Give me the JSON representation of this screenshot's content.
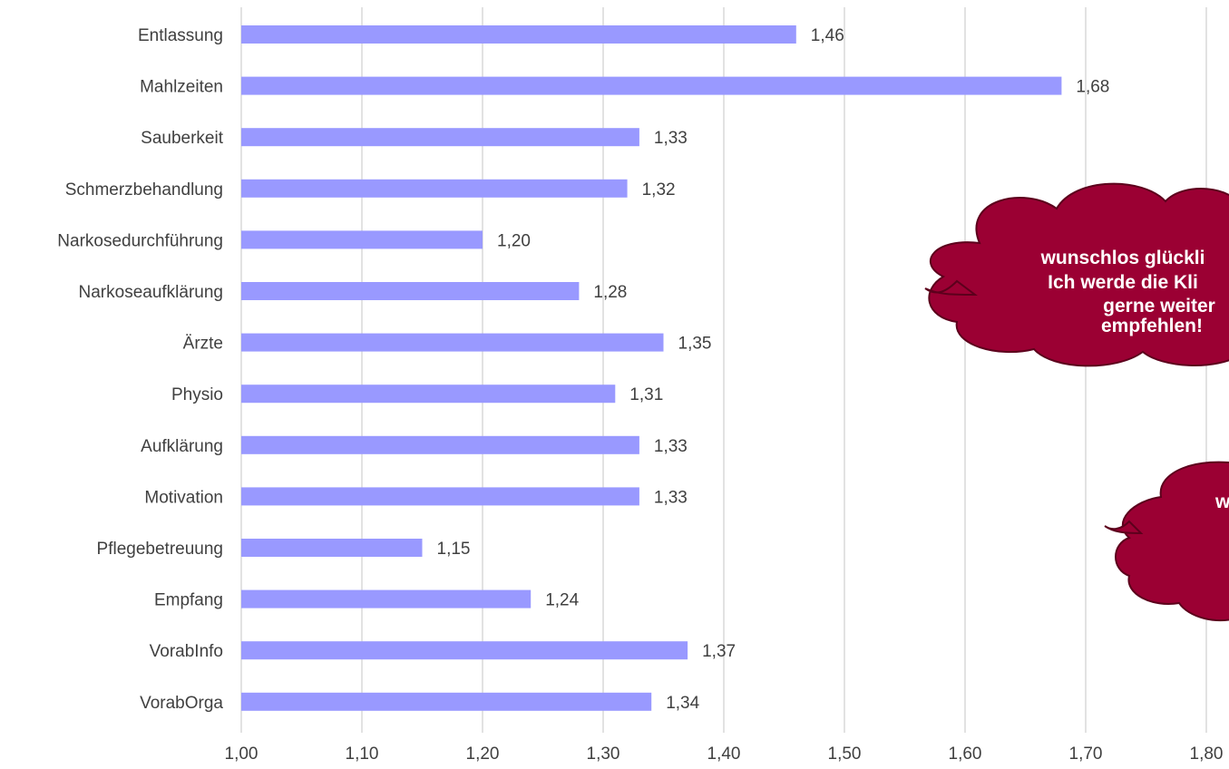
{
  "colors": {
    "bar": "#9999ff",
    "grid": "#d9d9d9",
    "text": "#404040",
    "cloud": "#9b0033",
    "cloud_outline": "#5c001c"
  },
  "chart_data": {
    "type": "bar",
    "orientation": "horizontal",
    "categories": [
      "Entlassung",
      "Mahlzeiten",
      "Sauberkeit",
      "Schmerzbehandlung",
      "Narkosedurchführung",
      "Narkoseaufklärung",
      "Ärzte",
      "Physio",
      "Aufklärung",
      "Motivation",
      "Pflegebetreuung",
      "Empfang",
      "VorabInfo",
      "VorabOrga"
    ],
    "values": [
      1.46,
      1.68,
      1.33,
      1.32,
      1.2,
      1.28,
      1.35,
      1.31,
      1.33,
      1.33,
      1.15,
      1.24,
      1.37,
      1.34
    ],
    "value_labels": [
      "1,46",
      "1,68",
      "1,33",
      "1,32",
      "1,20",
      "1,28",
      "1,35",
      "1,31",
      "1,33",
      "1,33",
      "1,15",
      "1,24",
      "1,37",
      "1,34"
    ],
    "xlim": [
      1.0,
      1.8
    ],
    "x_ticks": [
      1.0,
      1.1,
      1.2,
      1.3,
      1.4,
      1.5,
      1.6,
      1.7,
      1.8
    ],
    "x_tick_labels": [
      "1,00",
      "1,10",
      "1,20",
      "1,30",
      "1,40",
      "1,50",
      "1,60",
      "1,70",
      "1,80"
    ],
    "grid": "vertical",
    "legend": "none",
    "title": "",
    "xlabel": "",
    "ylabel": ""
  },
  "annotations": {
    "cloud_1_lines": [
      "wunschlos glückli",
      "Ich werde die Kli",
      "gerne weiter",
      "empfehlen!"
    ],
    "cloud_2_lines": [
      "w"
    ]
  }
}
